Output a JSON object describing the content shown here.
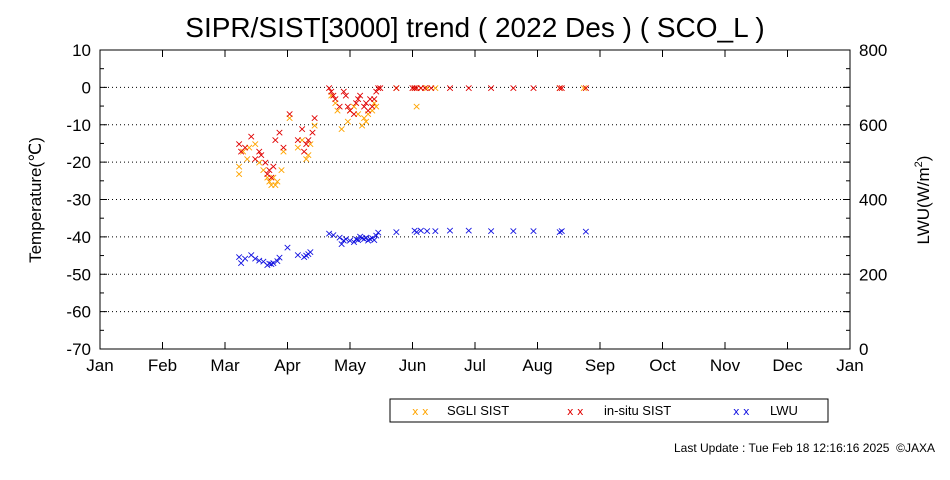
{
  "chart_data": {
    "type": "scatter",
    "title": "SIPR/SIST[3000] trend ( 2022 Des ) ( SCO_L )",
    "ylabel": "Temperature(℃)",
    "ylabel_right_prefix": "LWU(W/m",
    "ylabel_right_sup": "2",
    "ylabel_right_suffix": ")",
    "x_categories": [
      "Jan",
      "Feb",
      "Mar",
      "Apr",
      "May",
      "Jun",
      "Jul",
      "Aug",
      "Sep",
      "Oct",
      "Nov",
      "Dec",
      "Jan"
    ],
    "ylim": [
      -70,
      10
    ],
    "y_ticks": [
      10,
      0,
      -10,
      -20,
      -30,
      -40,
      -50,
      -60,
      -70
    ],
    "y2lim": [
      0,
      800
    ],
    "y2_ticks": [
      800,
      600,
      400,
      200,
      0
    ],
    "grid": "horizontal-dotted",
    "legend_position": "bottom-right",
    "series": [
      {
        "name": "SGLI SIST",
        "axis": "left",
        "color": "#ffa500",
        "points": [
          [
            "2022-03-08",
            -23
          ],
          [
            "2022-03-08",
            -21
          ],
          [
            "2022-03-10",
            -17
          ],
          [
            "2022-03-12",
            -19
          ],
          [
            "2022-03-13",
            -16
          ],
          [
            "2022-03-16",
            -15
          ],
          [
            "2022-03-18",
            -20
          ],
          [
            "2022-03-20",
            -22
          ],
          [
            "2022-03-22",
            -24
          ],
          [
            "2022-03-23",
            -25
          ],
          [
            "2022-03-24",
            -26
          ],
          [
            "2022-03-25",
            -24
          ],
          [
            "2022-03-26",
            -26
          ],
          [
            "2022-03-27",
            -25
          ],
          [
            "2022-03-29",
            -22
          ],
          [
            "2022-03-30",
            -17
          ],
          [
            "2022-04-02",
            -8
          ],
          [
            "2022-04-06",
            -16
          ],
          [
            "2022-04-08",
            -14
          ],
          [
            "2022-04-10",
            -19
          ],
          [
            "2022-04-11",
            -18
          ],
          [
            "2022-04-12",
            -15
          ],
          [
            "2022-04-14",
            -10
          ],
          [
            "2022-04-22",
            -2
          ],
          [
            "2022-04-24",
            -4
          ],
          [
            "2022-04-25",
            -6
          ],
          [
            "2022-04-27",
            -11
          ],
          [
            "2022-04-30",
            -9
          ],
          [
            "2022-05-01",
            -6
          ],
          [
            "2022-05-03",
            -5
          ],
          [
            "2022-05-05",
            -7
          ],
          [
            "2022-05-07",
            -10
          ],
          [
            "2022-05-08",
            -8
          ],
          [
            "2022-05-09",
            -9
          ],
          [
            "2022-05-10",
            -7
          ],
          [
            "2022-05-12",
            -6
          ],
          [
            "2022-05-13",
            -4
          ],
          [
            "2022-05-14",
            -5
          ],
          [
            "2022-05-24",
            0
          ],
          [
            "2022-06-02",
            0
          ],
          [
            "2022-06-03",
            -5
          ],
          [
            "2022-06-05",
            0
          ],
          [
            "2022-06-08",
            0
          ],
          [
            "2022-06-12",
            0
          ],
          [
            "2022-08-12",
            0
          ],
          [
            "2022-08-24",
            0
          ]
        ]
      },
      {
        "name": "in-situ SIST",
        "axis": "left",
        "color": "#e00000",
        "points": [
          [
            "2022-03-08",
            -15
          ],
          [
            "2022-03-09",
            -17
          ],
          [
            "2022-03-11",
            -16
          ],
          [
            "2022-03-14",
            -13
          ],
          [
            "2022-03-16",
            -19
          ],
          [
            "2022-03-18",
            -17
          ],
          [
            "2022-03-19",
            -18
          ],
          [
            "2022-03-21",
            -20
          ],
          [
            "2022-03-22",
            -23
          ],
          [
            "2022-03-23",
            -22
          ],
          [
            "2022-03-24",
            -24
          ],
          [
            "2022-03-25",
            -21
          ],
          [
            "2022-03-26",
            -14
          ],
          [
            "2022-03-28",
            -12
          ],
          [
            "2022-03-30",
            -16
          ],
          [
            "2022-04-02",
            -7
          ],
          [
            "2022-04-06",
            -14
          ],
          [
            "2022-04-08",
            -11
          ],
          [
            "2022-04-09",
            -17
          ],
          [
            "2022-04-10",
            -15
          ],
          [
            "2022-04-11",
            -14
          ],
          [
            "2022-04-13",
            -12
          ],
          [
            "2022-04-14",
            -8
          ],
          [
            "2022-04-21",
            0
          ],
          [
            "2022-04-22",
            -1
          ],
          [
            "2022-04-23",
            -2
          ],
          [
            "2022-04-24",
            -3
          ],
          [
            "2022-04-26",
            -5
          ],
          [
            "2022-04-28",
            -1
          ],
          [
            "2022-04-29",
            -2
          ],
          [
            "2022-04-30",
            -5
          ],
          [
            "2022-05-01",
            -6
          ],
          [
            "2022-05-03",
            -7
          ],
          [
            "2022-05-04",
            -4
          ],
          [
            "2022-05-05",
            -3
          ],
          [
            "2022-05-06",
            -2
          ],
          [
            "2022-05-08",
            -5
          ],
          [
            "2022-05-09",
            -4
          ],
          [
            "2022-05-10",
            -6
          ],
          [
            "2022-05-11",
            -3
          ],
          [
            "2022-05-12",
            -5
          ],
          [
            "2022-05-13",
            -3
          ],
          [
            "2022-05-14",
            -1
          ],
          [
            "2022-05-15",
            0
          ],
          [
            "2022-05-16",
            0
          ],
          [
            "2022-05-24",
            0
          ],
          [
            "2022-06-01",
            0
          ],
          [
            "2022-06-02",
            0
          ],
          [
            "2022-06-03",
            0
          ],
          [
            "2022-06-05",
            0
          ],
          [
            "2022-06-07",
            0
          ],
          [
            "2022-06-10",
            0
          ],
          [
            "2022-06-19",
            0
          ],
          [
            "2022-06-28",
            0
          ],
          [
            "2022-07-09",
            0
          ],
          [
            "2022-07-20",
            0
          ],
          [
            "2022-07-30",
            0
          ],
          [
            "2022-08-12",
            0
          ],
          [
            "2022-08-13",
            0
          ],
          [
            "2022-08-25",
            0
          ]
        ]
      },
      {
        "name": "LWU",
        "axis": "right",
        "color": "#1010e0",
        "points": [
          [
            "2022-03-08",
            248
          ],
          [
            "2022-03-09",
            232
          ],
          [
            "2022-03-11",
            244
          ],
          [
            "2022-03-14",
            253
          ],
          [
            "2022-03-16",
            243
          ],
          [
            "2022-03-18",
            238
          ],
          [
            "2022-03-20",
            236
          ],
          [
            "2022-03-22",
            226
          ],
          [
            "2022-03-23",
            230
          ],
          [
            "2022-03-24",
            229
          ],
          [
            "2022-03-25",
            232
          ],
          [
            "2022-03-27",
            237
          ],
          [
            "2022-03-28",
            246
          ],
          [
            "2022-04-01",
            273
          ],
          [
            "2022-04-06",
            253
          ],
          [
            "2022-04-09",
            248
          ],
          [
            "2022-04-10",
            252
          ],
          [
            "2022-04-11",
            256
          ],
          [
            "2022-04-12",
            261
          ],
          [
            "2022-04-21",
            310
          ],
          [
            "2022-04-23",
            307
          ],
          [
            "2022-04-26",
            300
          ],
          [
            "2022-04-27",
            282
          ],
          [
            "2022-04-28",
            291
          ],
          [
            "2022-04-29",
            296
          ],
          [
            "2022-05-01",
            291
          ],
          [
            "2022-05-03",
            287
          ],
          [
            "2022-05-04",
            296
          ],
          [
            "2022-05-05",
            293
          ],
          [
            "2022-05-06",
            303
          ],
          [
            "2022-05-07",
            298
          ],
          [
            "2022-05-08",
            295
          ],
          [
            "2022-05-09",
            299
          ],
          [
            "2022-05-10",
            292
          ],
          [
            "2022-05-11",
            295
          ],
          [
            "2022-05-12",
            298
          ],
          [
            "2022-05-13",
            293
          ],
          [
            "2022-05-14",
            305
          ],
          [
            "2022-05-15",
            313
          ],
          [
            "2022-05-24",
            314
          ],
          [
            "2022-06-02",
            318
          ],
          [
            "2022-06-03",
            315
          ],
          [
            "2022-06-05",
            318
          ],
          [
            "2022-06-08",
            317
          ],
          [
            "2022-06-12",
            317
          ],
          [
            "2022-06-19",
            318
          ],
          [
            "2022-06-28",
            318
          ],
          [
            "2022-07-09",
            317
          ],
          [
            "2022-07-20",
            317
          ],
          [
            "2022-07-30",
            317
          ],
          [
            "2022-08-12",
            315
          ],
          [
            "2022-08-13",
            317
          ],
          [
            "2022-08-25",
            316
          ]
        ]
      }
    ]
  },
  "legend": {
    "marker": "x x",
    "items": [
      "SGLI SIST",
      "in-situ SIST",
      "LWU"
    ]
  },
  "footer": {
    "last_update": "Last Update : Tue Feb 18 12:16:16 2025  ©JAXA"
  }
}
